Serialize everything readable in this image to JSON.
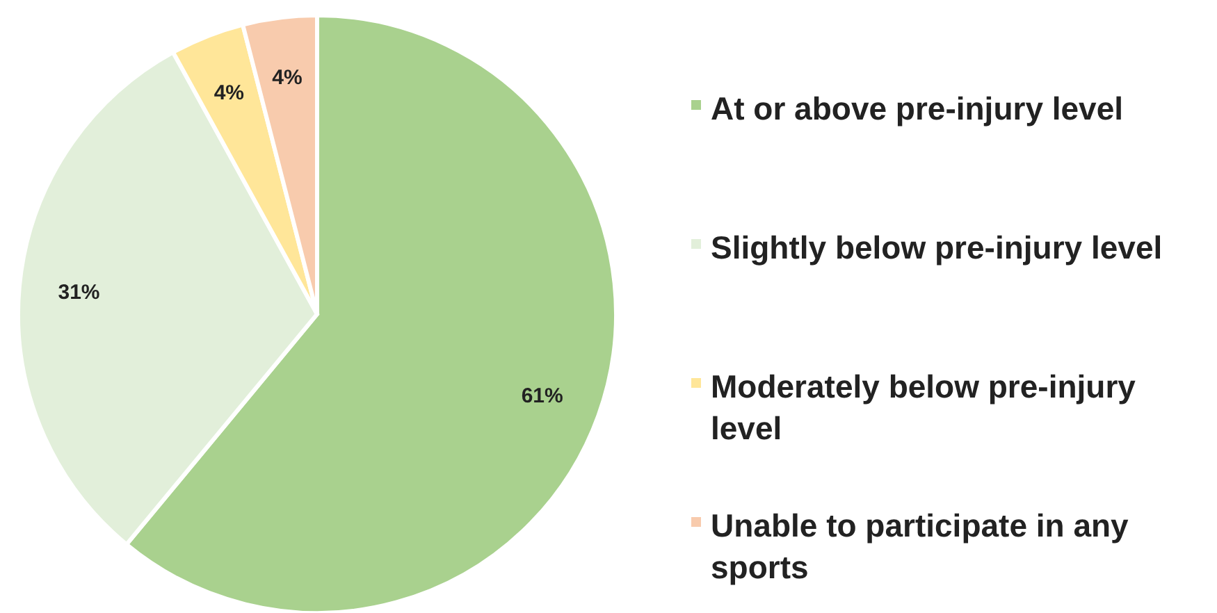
{
  "chart_data": {
    "type": "pie",
    "categories": [
      "At or above pre-injury level",
      "Slightly below pre-injury level",
      "Moderately below pre-injury level",
      "Unable to participate in any sports"
    ],
    "values": [
      61,
      31,
      4,
      4
    ],
    "colors": [
      "#a9d18e",
      "#e2efda",
      "#ffe699",
      "#f8cbad"
    ],
    "value_labels": [
      "61%",
      "31%",
      "4%",
      "4%"
    ],
    "legend": "right"
  }
}
